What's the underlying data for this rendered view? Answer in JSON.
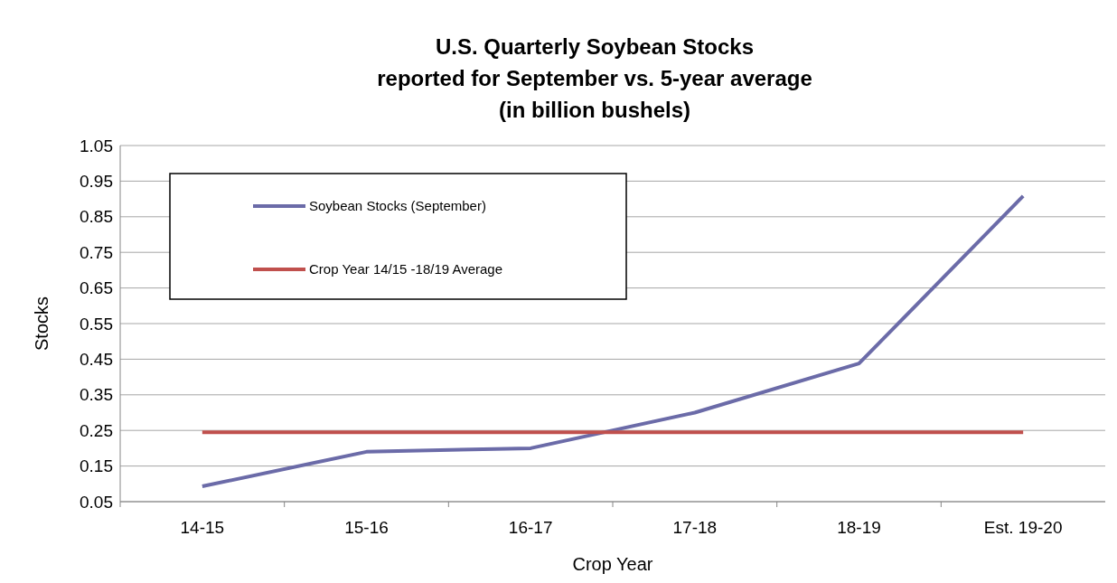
{
  "chart_data": {
    "type": "line",
    "title": "U.S. Quarterly Soybean Stocks\nreported for September vs. 5-year average\n(in billion bushels)",
    "xlabel": "Crop Year",
    "ylabel": "Stocks",
    "categories": [
      "14-15",
      "15-16",
      "16-17",
      "17-18",
      "18-19",
      "Est. 19-20"
    ],
    "series": [
      {
        "name": "Soybean Stocks (September)",
        "color": "#6b6ba8",
        "values": [
          0.093,
          0.19,
          0.2,
          0.3,
          0.438,
          0.908
        ]
      },
      {
        "name": "Crop Year 14/15 -18/19 Average",
        "color": "#c0504d",
        "values": [
          0.245,
          0.245,
          0.245,
          0.245,
          0.245,
          0.245
        ]
      }
    ],
    "ylim": [
      0.05,
      1.05
    ],
    "yticks": [
      0.05,
      0.15,
      0.25,
      0.35,
      0.45,
      0.55,
      0.65,
      0.75,
      0.85,
      0.95,
      1.05
    ],
    "grid": "y",
    "legend": "top left",
    "marker": "none",
    "line_style": "solid"
  }
}
